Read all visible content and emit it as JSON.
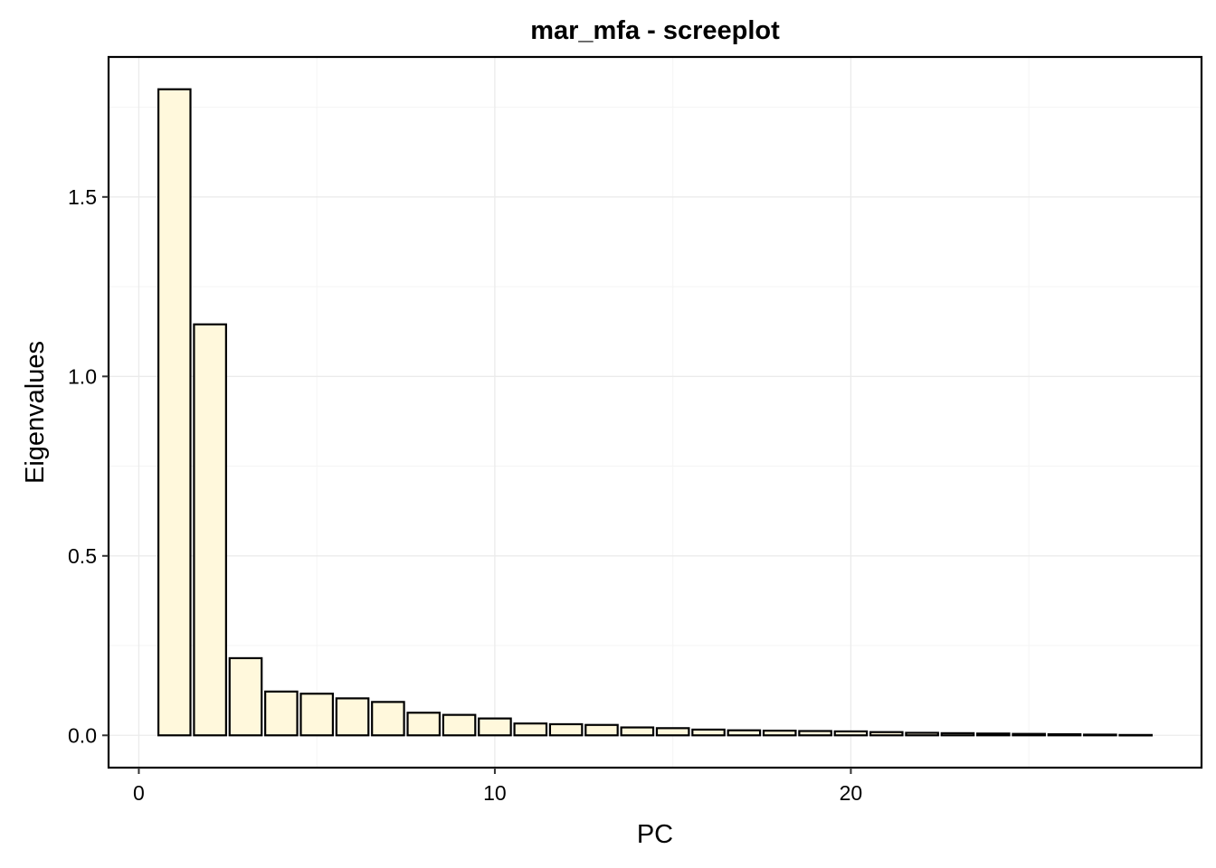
{
  "chart_data": {
    "type": "bar",
    "title": "mar_mfa - screeplot",
    "xlabel": "PC",
    "ylabel": "Eigenvalues",
    "x": [
      1,
      2,
      3,
      4,
      5,
      6,
      7,
      8,
      9,
      10,
      11,
      12,
      13,
      14,
      15,
      16,
      17,
      18,
      19,
      20,
      21,
      22,
      23,
      24,
      25,
      26,
      27,
      28
    ],
    "values": [
      1.8,
      1.145,
      0.215,
      0.122,
      0.116,
      0.103,
      0.093,
      0.063,
      0.057,
      0.047,
      0.033,
      0.031,
      0.029,
      0.022,
      0.02,
      0.016,
      0.014,
      0.013,
      0.012,
      0.011,
      0.009,
      0.007,
      0.006,
      0.005,
      0.004,
      0.003,
      0.002,
      0.001
    ],
    "xlim": [
      -0.85,
      29.85
    ],
    "ylim": [
      -0.09,
      1.89
    ],
    "x_ticks": [
      0,
      10,
      20
    ],
    "x_tick_labels": [
      "0",
      "10",
      "20"
    ],
    "y_ticks": [
      0,
      0.5,
      1.0,
      1.5
    ],
    "y_tick_labels": [
      "0.0",
      "0.5",
      "1.0",
      "1.5"
    ],
    "bar_fill": "#fff8dc",
    "bar_stroke": "#000000",
    "grid": true,
    "legend": "none"
  }
}
